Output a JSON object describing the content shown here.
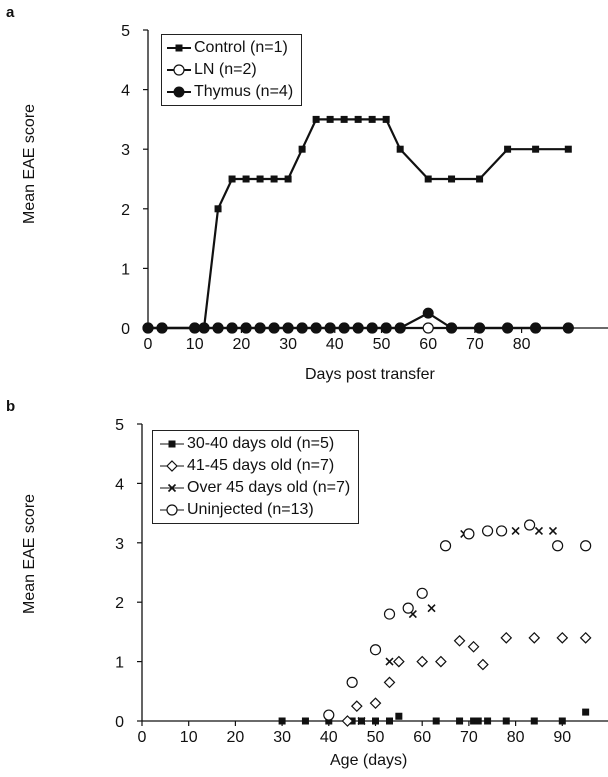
{
  "panels": {
    "a": {
      "letter": "a",
      "ylabel": "Mean EAE score",
      "xlabel": "Days post transfer"
    },
    "b": {
      "letter": "b",
      "ylabel": "Mean EAE score",
      "xlabel": "Age (days)"
    }
  },
  "chart_data": [
    {
      "type": "line",
      "xlabel": "Days post transfer",
      "ylabel": "Mean EAE score",
      "xlim": [
        0,
        90
      ],
      "ylim": [
        0,
        5
      ],
      "xticks": [
        0,
        10,
        20,
        30,
        40,
        50,
        60,
        70,
        80
      ],
      "yticks": [
        0,
        1,
        2,
        3,
        4,
        5
      ],
      "legend_position": "top-left",
      "series": [
        {
          "name": "Control (n=1)",
          "marker": "square-filled",
          "line": true,
          "color": "#111111",
          "x": [
            0,
            3,
            10,
            12,
            15,
            18,
            21,
            24,
            27,
            30,
            33,
            36,
            39,
            42,
            45,
            48,
            51,
            54,
            60,
            65,
            71,
            77,
            83,
            90
          ],
          "y": [
            0,
            0,
            0,
            0,
            2.0,
            2.5,
            2.5,
            2.5,
            2.5,
            2.5,
            3.0,
            3.5,
            3.5,
            3.5,
            3.5,
            3.5,
            3.5,
            3.0,
            2.5,
            2.5,
            2.5,
            3.0,
            3.0,
            3.0
          ]
        },
        {
          "name": "LN (n=2)",
          "marker": "circle-open",
          "line": true,
          "color": "#111111",
          "x": [
            0,
            3,
            10,
            12,
            15,
            18,
            21,
            24,
            27,
            30,
            33,
            36,
            39,
            42,
            45,
            48,
            51,
            54,
            60,
            65,
            71,
            77,
            83,
            90
          ],
          "y": [
            0,
            0,
            0,
            0,
            0,
            0,
            0,
            0,
            0,
            0,
            0,
            0,
            0,
            0,
            0,
            0,
            0,
            0,
            0,
            0,
            0,
            0,
            0,
            0
          ]
        },
        {
          "name": "Thymus (n=4)",
          "marker": "circle-filled",
          "line": true,
          "color": "#111111",
          "x": [
            0,
            3,
            10,
            12,
            15,
            18,
            21,
            24,
            27,
            30,
            33,
            36,
            39,
            42,
            45,
            48,
            51,
            54,
            60,
            65,
            71,
            77,
            83,
            90
          ],
          "y": [
            0,
            0,
            0,
            0,
            0,
            0,
            0,
            0,
            0,
            0,
            0,
            0,
            0,
            0,
            0,
            0,
            0,
            0,
            0.25,
            0,
            0,
            0,
            0,
            0
          ]
        }
      ]
    },
    {
      "type": "scatter",
      "xlabel": "Age (days)",
      "ylabel": "Mean EAE score",
      "xlim": [
        0,
        95
      ],
      "ylim": [
        0,
        5
      ],
      "xticks": [
        0,
        10,
        20,
        30,
        40,
        50,
        60,
        70,
        80,
        90
      ],
      "yticks": [
        0,
        1,
        2,
        3,
        4,
        5
      ],
      "legend_position": "top-left",
      "series": [
        {
          "name": "30-40 days old (n=5)",
          "marker": "square-filled",
          "line": false,
          "color": "#111111",
          "x": [
            30,
            35,
            40,
            45,
            47,
            50,
            53,
            55,
            63,
            68,
            71,
            72,
            74,
            78,
            84,
            90,
            95
          ],
          "y": [
            0,
            0,
            0,
            0,
            0,
            0,
            0,
            0.08,
            0,
            0,
            0,
            0,
            0,
            0,
            0,
            0,
            0.15
          ]
        },
        {
          "name": "41-45 days old (n=7)",
          "marker": "diamond-open",
          "line": false,
          "color": "#111111",
          "x": [
            44,
            46,
            50,
            53,
            55,
            60,
            64,
            68,
            71,
            73,
            78,
            84,
            90,
            95
          ],
          "y": [
            0,
            0.25,
            0.3,
            0.65,
            1.0,
            1.0,
            1.0,
            1.35,
            1.25,
            0.95,
            1.4,
            1.4,
            1.4,
            1.4
          ]
        },
        {
          "name": "Over 45 days old (n=7)",
          "marker": "cross",
          "line": false,
          "color": "#111111",
          "x": [
            47,
            53,
            58,
            62,
            69,
            80,
            85,
            88
          ],
          "y": [
            0,
            1.0,
            1.8,
            1.9,
            3.15,
            3.2,
            3.2,
            3.2
          ]
        },
        {
          "name": "Uninjected (n=13)",
          "marker": "circle-open",
          "line": false,
          "color": "#111111",
          "x": [
            40,
            45,
            50,
            53,
            57,
            60,
            65,
            70,
            74,
            77,
            83,
            89,
            95
          ],
          "y": [
            0.1,
            0.65,
            1.2,
            1.8,
            1.9,
            2.15,
            2.95,
            3.15,
            3.2,
            3.2,
            3.3,
            2.95,
            2.95
          ]
        }
      ]
    }
  ]
}
